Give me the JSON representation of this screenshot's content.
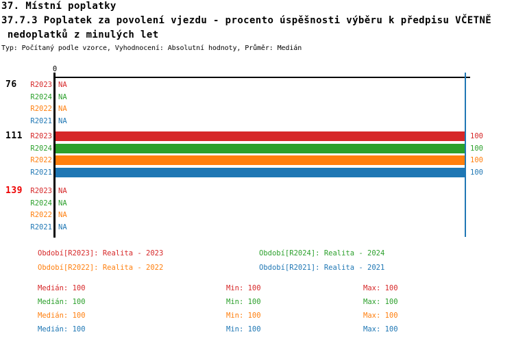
{
  "header": {
    "section_title": "37. Místní poplatky",
    "title_line1": "37.7.3 Poplatek za povolení vjezdu - procento úspěšnosti výběru k předpisu VČETNĚ",
    "title_line2": " nedoplatků z minulých let",
    "meta": "Typ: Počítaný podle vzorce, Vyhodnocení: Absolutní hodnoty, Průměr: Medián"
  },
  "chart_data": {
    "type": "bar",
    "orientation": "horizontal",
    "x_axis": {
      "origin_tick_label": "0",
      "min": 0,
      "max": 100,
      "reference_line_at": 100,
      "reference_line_color": "#1f77b4"
    },
    "na_text": "NA",
    "series_order": [
      "R2023",
      "R2024",
      "R2022",
      "R2021"
    ],
    "series": {
      "R2023": {
        "color": "#d62728"
      },
      "R2024": {
        "color": "#2ca02c"
      },
      "R2022": {
        "color": "#ff7f0e"
      },
      "R2021": {
        "color": "#1f77b4"
      }
    },
    "groups": [
      {
        "label": "76",
        "label_color": "#000000",
        "values": {
          "R2023": "NA",
          "R2024": "NA",
          "R2022": "NA",
          "R2021": "NA"
        }
      },
      {
        "label": "111",
        "label_color": "#000000",
        "values": {
          "R2023": 100,
          "R2024": 100,
          "R2022": 100,
          "R2021": 100
        }
      },
      {
        "label": "139",
        "label_color": "#ee0000",
        "values": {
          "R2023": "NA",
          "R2024": "NA",
          "R2022": "NA",
          "R2021": "NA"
        }
      }
    ]
  },
  "legend": {
    "items": [
      {
        "series": "R2023",
        "color": "#d62728",
        "text": "Období[R2023]: Realita - 2023"
      },
      {
        "series": "R2024",
        "color": "#2ca02c",
        "text": "Období[R2024]: Realita - 2024"
      },
      {
        "series": "R2022",
        "color": "#ff7f0e",
        "text": "Období[R2022]: Realita - 2022"
      },
      {
        "series": "R2021",
        "color": "#1f77b4",
        "text": "Období[R2021]: Realita - 2021"
      }
    ]
  },
  "stats": {
    "rows": [
      {
        "series": "R2023",
        "color": "#d62728",
        "median": "Medián: 100",
        "min": "Min: 100",
        "max": "Max: 100"
      },
      {
        "series": "R2024",
        "color": "#2ca02c",
        "median": "Medián: 100",
        "min": "Min: 100",
        "max": "Max: 100"
      },
      {
        "series": "R2022",
        "color": "#ff7f0e",
        "median": "Medián: 100",
        "min": "Min: 100",
        "max": "Max: 100"
      },
      {
        "series": "R2021",
        "color": "#1f77b4",
        "median": "Medián: 100",
        "min": "Min: 100",
        "max": "Max: 100"
      }
    ]
  }
}
